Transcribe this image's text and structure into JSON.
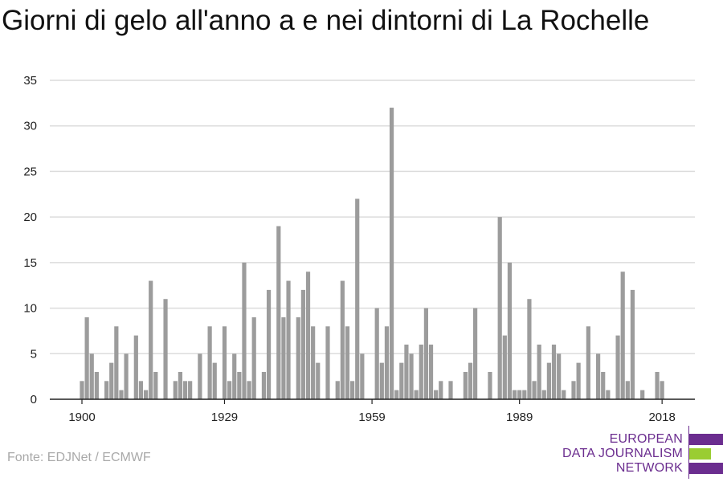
{
  "title": "Giorni di gelo all'anno a e nei dintorni di La Rochelle",
  "source": "Fonte: EDJNet / ECMWF",
  "logo": {
    "lines": [
      "EUROPEAN",
      "DATA JOURNALISM",
      "NETWORK"
    ],
    "colors": {
      "purple": "#6b2d8f",
      "green": "#9acd32"
    }
  },
  "colors": {
    "bar": "#9c9c9c",
    "grid": "#dcdcdc",
    "axis": "#222222"
  },
  "chart_data": {
    "type": "bar",
    "title": "Giorni di gelo all'anno a e nei dintorni di La Rochelle",
    "xlabel": "",
    "ylabel": "",
    "ylim": [
      0,
      35
    ],
    "yticks": [
      0,
      5,
      10,
      15,
      20,
      25,
      30,
      35
    ],
    "xticks": [
      1900,
      1929,
      1959,
      1989,
      2018
    ],
    "grid": true,
    "categories": [
      1900,
      1901,
      1902,
      1903,
      1904,
      1905,
      1906,
      1907,
      1908,
      1909,
      1910,
      1911,
      1912,
      1913,
      1914,
      1915,
      1916,
      1917,
      1918,
      1919,
      1920,
      1921,
      1922,
      1923,
      1924,
      1925,
      1926,
      1927,
      1928,
      1929,
      1930,
      1931,
      1932,
      1933,
      1934,
      1935,
      1936,
      1937,
      1938,
      1939,
      1940,
      1941,
      1942,
      1943,
      1944,
      1945,
      1946,
      1947,
      1948,
      1949,
      1950,
      1951,
      1952,
      1953,
      1954,
      1955,
      1956,
      1957,
      1958,
      1959,
      1960,
      1961,
      1962,
      1963,
      1964,
      1965,
      1966,
      1967,
      1968,
      1969,
      1970,
      1971,
      1972,
      1973,
      1974,
      1975,
      1976,
      1977,
      1978,
      1979,
      1980,
      1981,
      1982,
      1983,
      1984,
      1985,
      1986,
      1987,
      1988,
      1989,
      1990,
      1991,
      1992,
      1993,
      1994,
      1995,
      1996,
      1997,
      1998,
      1999,
      2000,
      2001,
      2002,
      2003,
      2004,
      2005,
      2006,
      2007,
      2008,
      2009,
      2010,
      2011,
      2012,
      2013,
      2014,
      2015,
      2016,
      2017,
      2018
    ],
    "values": [
      2,
      9,
      5,
      3,
      0,
      2,
      4,
      8,
      1,
      5,
      0,
      7,
      2,
      1,
      13,
      3,
      0,
      11,
      0,
      2,
      3,
      2,
      2,
      0,
      5,
      0,
      8,
      4,
      0,
      8,
      2,
      5,
      3,
      15,
      2,
      9,
      0,
      3,
      12,
      0,
      19,
      9,
      13,
      0,
      9,
      12,
      14,
      8,
      4,
      0,
      8,
      0,
      2,
      13,
      8,
      2,
      22,
      5,
      0,
      0,
      10,
      4,
      8,
      32,
      1,
      4,
      6,
      5,
      1,
      6,
      10,
      6,
      1,
      2,
      0,
      2,
      0,
      0,
      3,
      4,
      10,
      0,
      0,
      3,
      0,
      20,
      7,
      15,
      1,
      1,
      1,
      11,
      2,
      6,
      1,
      4,
      6,
      5,
      1,
      0,
      2,
      4,
      0,
      8,
      0,
      5,
      3,
      1,
      0,
      7,
      14,
      2,
      12,
      0,
      1,
      0,
      0,
      3,
      2
    ]
  }
}
